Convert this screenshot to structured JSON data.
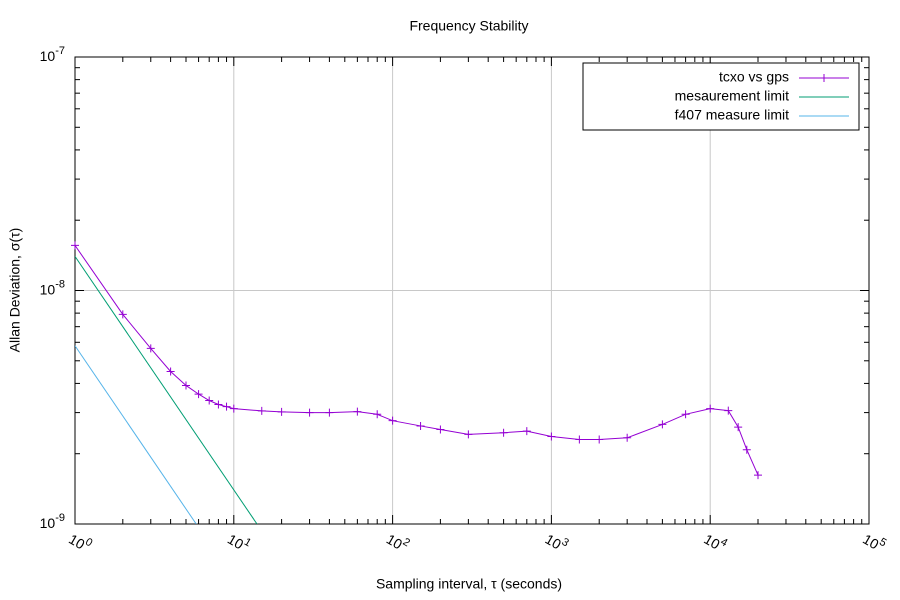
{
  "chart_data": {
    "type": "line",
    "title": "Frequency Stability",
    "xlabel": "Sampling interval, τ (seconds)",
    "ylabel": "Allan Deviation, σ(τ)",
    "log_x": true,
    "log_y": true,
    "grid": true,
    "minor_ticks": true,
    "legend": "top-right",
    "xlim": [
      1,
      100000
    ],
    "ylim": [
      1e-09,
      1e-07
    ],
    "xticks": [
      {
        "value": 1,
        "label": "10^0"
      },
      {
        "value": 10,
        "label": "10^1"
      },
      {
        "value": 100,
        "label": "10^2"
      },
      {
        "value": 1000,
        "label": "10^3"
      },
      {
        "value": 10000,
        "label": "10^4"
      },
      {
        "value": 100000,
        "label": "10^5"
      }
    ],
    "yticks": [
      {
        "value": 1e-09,
        "label": "10^-9"
      },
      {
        "value": 1e-08,
        "label": "10^-8"
      },
      {
        "value": 1e-07,
        "label": "10^-7"
      }
    ],
    "series": [
      {
        "name": "tcxo vs gps",
        "color": "#9400d3",
        "marker": "+",
        "x": [
          1,
          2,
          3,
          4,
          5,
          6,
          7,
          8,
          9,
          10,
          15,
          20,
          30,
          40,
          60,
          80,
          100,
          150,
          200,
          300,
          500,
          700,
          1000,
          1500,
          2000,
          3000,
          5000,
          7000,
          10000,
          13000,
          15000,
          17000,
          20000
        ],
        "values": [
          1.56e-08,
          7.9e-09,
          5.65e-09,
          4.5e-09,
          3.92e-09,
          3.6e-09,
          3.38e-09,
          3.25e-09,
          3.18e-09,
          3.12e-09,
          3.05e-09,
          3.02e-09,
          3e-09,
          3e-09,
          3.03e-09,
          2.95e-09,
          2.77e-09,
          2.63e-09,
          2.54e-09,
          2.42e-09,
          2.46e-09,
          2.5e-09,
          2.37e-09,
          2.3e-09,
          2.3e-09,
          2.34e-09,
          2.67e-09,
          2.95e-09,
          3.12e-09,
          3.06e-09,
          2.6e-09,
          2.08e-09,
          1.62e-09
        ]
      },
      {
        "name": "mesaurement limit",
        "color": "#009e73",
        "x": [
          1,
          14
        ],
        "values": [
          1.4e-08,
          1e-09
        ]
      },
      {
        "name": "f407 measure limit",
        "color": "#56b4e9",
        "x": [
          1,
          5.8
        ],
        "values": [
          5.8e-09,
          1e-09
        ]
      }
    ]
  }
}
